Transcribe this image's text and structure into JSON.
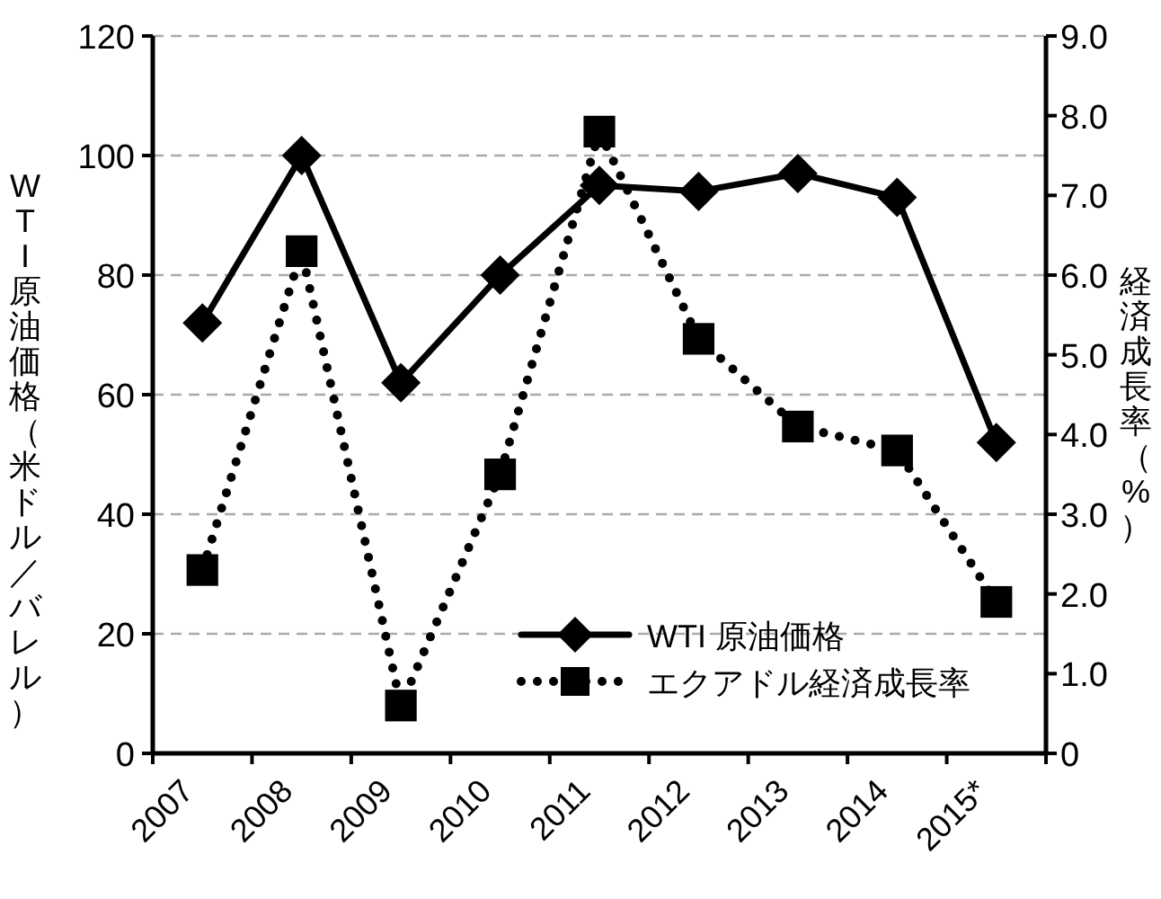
{
  "chart_data": {
    "type": "line",
    "ylabel": "WTI原油価格（米ドル／バレル）",
    "y2label": "経済成長率（%）",
    "categories": [
      "2007",
      "2008",
      "2009",
      "2010",
      "2011",
      "2012",
      "2013",
      "2014",
      "2015*"
    ],
    "series": [
      {
        "name": "WTI 原油価格",
        "color": "#000000",
        "marker": "diamond",
        "line_style": "solid",
        "values": [
          72,
          100,
          62,
          80,
          95,
          94,
          97,
          93,
          52
        ]
      },
      {
        "name": "エクアドル経済成長率",
        "color": "#000000",
        "marker": "square",
        "line_style": "dotted",
        "axis": "y2",
        "values": [
          2.3,
          6.3,
          0.6,
          3.5,
          7.8,
          5.2,
          4.1,
          3.8,
          1.9
        ]
      }
    ],
    "ylim": [
      0,
      120
    ],
    "yticks": [
      0,
      20,
      40,
      60,
      80,
      100,
      120
    ],
    "y2lim": [
      0,
      9
    ],
    "y2ticks": [
      0,
      {
        "value": 1,
        "label": "1.0"
      },
      {
        "value": 2,
        "label": "2.0"
      },
      {
        "value": 3,
        "label": "3.0"
      },
      {
        "value": 4,
        "label": "4.0"
      },
      {
        "value": 5,
        "label": "5.0"
      },
      {
        "value": 6,
        "label": "6.0"
      },
      {
        "value": 7,
        "label": "7.0"
      },
      {
        "value": 8,
        "label": "8.0"
      },
      {
        "value": 9,
        "label": "9.0"
      }
    ],
    "grid": "y",
    "legend": "bottom right"
  }
}
